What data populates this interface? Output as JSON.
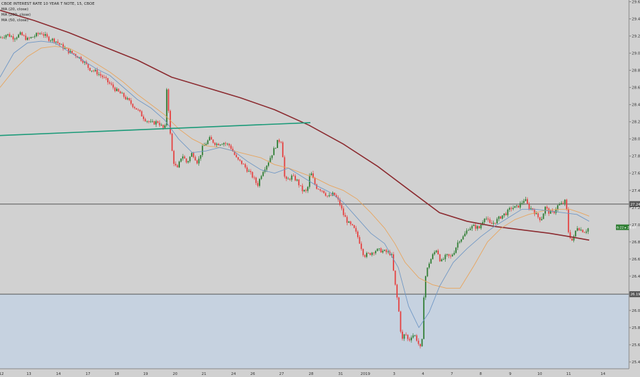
{
  "chart_data": {
    "type": "candlestick",
    "title": "CBOE INTEREST RATE 10 YEAR T NOTE, 15, CBOE",
    "legend_items": [
      "MA (20, close)",
      "MA (200, close)",
      "MA (50, close)"
    ],
    "x_ticks": [
      "12",
      "13",
      "14",
      "17",
      "18",
      "19",
      "20",
      "21",
      "24",
      "26",
      "27",
      "28",
      "31",
      "2019",
      "3",
      "4",
      "7",
      "8",
      "9",
      "10",
      "11",
      "14"
    ],
    "y_ticks": [
      "25.40",
      "25.60",
      "25.80",
      "26.00",
      "26.20",
      "26.40",
      "26.60",
      "26.80",
      "27.00",
      "27.20",
      "27.40",
      "27.60",
      "27.80",
      "28.00",
      "28.20",
      "28.40",
      "28.60",
      "28.80",
      "29.00",
      "29.20",
      "29.40",
      "29.60"
    ],
    "ylim": [
      25.32,
      29.62
    ],
    "horizontal_levels": [
      {
        "label": "27.24",
        "value": 27.24
      },
      {
        "label": "26.19",
        "value": 26.19
      }
    ],
    "last_price": {
      "label": "6:22 ▸ 26.97",
      "value": 26.97
    },
    "trendline": {
      "x_start": 0,
      "y_start": 28.04,
      "x_end": 452,
      "y_end": 28.19
    },
    "colors": {
      "up": "#2e7d32",
      "down": "#e5403f",
      "ma20": "#6f97c5",
      "ma50": "#e8a45c",
      "ma200": "#8b2a2f",
      "trendline": "#1a9a78",
      "zone": "#c6d2e0",
      "background": "#d1d1d1",
      "price_tag": "#2e7d32"
    },
    "price_path": [
      [
        0,
        29.18
      ],
      [
        10,
        29.22
      ],
      [
        20,
        29.18
      ],
      [
        30,
        29.22
      ],
      [
        40,
        29.16
      ],
      [
        50,
        29.2
      ],
      [
        60,
        29.24
      ],
      [
        70,
        29.17
      ],
      [
        80,
        29.15
      ],
      [
        90,
        29.08
      ],
      [
        100,
        29.02
      ],
      [
        110,
        28.98
      ],
      [
        120,
        28.92
      ],
      [
        130,
        28.82
      ],
      [
        140,
        28.78
      ],
      [
        150,
        28.72
      ],
      [
        160,
        28.64
      ],
      [
        170,
        28.56
      ],
      [
        180,
        28.5
      ],
      [
        190,
        28.42
      ],
      [
        200,
        28.34
      ],
      [
        210,
        28.24
      ],
      [
        220,
        28.18
      ],
      [
        230,
        28.2
      ],
      [
        240,
        28.1
      ],
      [
        243,
        28.62
      ],
      [
        248,
        28.05
      ],
      [
        252,
        27.75
      ],
      [
        258,
        27.64
      ],
      [
        265,
        27.82
      ],
      [
        272,
        27.72
      ],
      [
        280,
        27.84
      ],
      [
        288,
        27.72
      ],
      [
        295,
        27.9
      ],
      [
        305,
        28.0
      ],
      [
        315,
        27.94
      ],
      [
        325,
        27.96
      ],
      [
        335,
        27.92
      ],
      [
        345,
        27.76
      ],
      [
        352,
        27.72
      ],
      [
        360,
        27.64
      ],
      [
        368,
        27.56
      ],
      [
        375,
        27.46
      ],
      [
        382,
        27.62
      ],
      [
        390,
        27.72
      ],
      [
        398,
        27.86
      ],
      [
        405,
        27.98
      ],
      [
        410,
        27.98
      ],
      [
        415,
        27.5
      ],
      [
        425,
        27.56
      ],
      [
        432,
        27.52
      ],
      [
        440,
        27.4
      ],
      [
        447,
        27.38
      ],
      [
        452,
        27.62
      ],
      [
        460,
        27.44
      ],
      [
        470,
        27.4
      ],
      [
        478,
        27.32
      ],
      [
        486,
        27.36
      ],
      [
        494,
        27.26
      ],
      [
        500,
        27.12
      ],
      [
        507,
        27.02
      ],
      [
        515,
        26.96
      ],
      [
        522,
        26.84
      ],
      [
        530,
        26.64
      ],
      [
        538,
        26.66
      ],
      [
        546,
        26.7
      ],
      [
        554,
        26.7
      ],
      [
        562,
        26.68
      ],
      [
        570,
        26.66
      ],
      [
        575,
        26.32
      ],
      [
        580,
        26.05
      ],
      [
        585,
        25.64
      ],
      [
        590,
        25.74
      ],
      [
        595,
        25.64
      ],
      [
        600,
        25.72
      ],
      [
        605,
        25.7
      ],
      [
        610,
        25.6
      ],
      [
        614,
        25.52
      ],
      [
        618,
        26.34
      ],
      [
        624,
        26.54
      ],
      [
        630,
        26.64
      ],
      [
        636,
        26.72
      ],
      [
        642,
        26.56
      ],
      [
        650,
        26.64
      ],
      [
        656,
        26.62
      ],
      [
        662,
        26.7
      ],
      [
        668,
        26.82
      ],
      [
        675,
        26.86
      ],
      [
        682,
        26.96
      ],
      [
        690,
        26.98
      ],
      [
        698,
        26.96
      ],
      [
        706,
        27.1
      ],
      [
        714,
        27.0
      ],
      [
        722,
        27.04
      ],
      [
        730,
        27.1
      ],
      [
        738,
        27.14
      ],
      [
        745,
        27.2
      ],
      [
        752,
        27.2
      ],
      [
        758,
        27.24
      ],
      [
        764,
        27.3
      ],
      [
        770,
        27.2
      ],
      [
        776,
        27.18
      ],
      [
        782,
        27.1
      ],
      [
        788,
        27.06
      ],
      [
        794,
        27.2
      ],
      [
        800,
        27.14
      ],
      [
        806,
        27.14
      ],
      [
        812,
        27.22
      ],
      [
        818,
        27.24
      ],
      [
        824,
        27.28
      ],
      [
        828,
        26.9
      ],
      [
        834,
        26.8
      ],
      [
        840,
        26.98
      ],
      [
        846,
        26.94
      ],
      [
        852,
        26.92
      ],
      [
        858,
        26.97
      ]
    ],
    "ma20_path": [
      [
        0,
        28.72
      ],
      [
        20,
        29.0
      ],
      [
        40,
        29.12
      ],
      [
        60,
        29.14
      ],
      [
        80,
        29.12
      ],
      [
        100,
        29.02
      ],
      [
        120,
        28.92
      ],
      [
        140,
        28.82
      ],
      [
        160,
        28.74
      ],
      [
        180,
        28.6
      ],
      [
        200,
        28.46
      ],
      [
        220,
        28.36
      ],
      [
        240,
        28.22
      ],
      [
        260,
        28.0
      ],
      [
        280,
        27.84
      ],
      [
        300,
        27.86
      ],
      [
        320,
        27.9
      ],
      [
        340,
        27.86
      ],
      [
        360,
        27.74
      ],
      [
        380,
        27.64
      ],
      [
        400,
        27.6
      ],
      [
        420,
        27.66
      ],
      [
        440,
        27.56
      ],
      [
        460,
        27.46
      ],
      [
        480,
        27.38
      ],
      [
        500,
        27.26
      ],
      [
        520,
        27.08
      ],
      [
        540,
        26.9
      ],
      [
        560,
        26.78
      ],
      [
        580,
        26.5
      ],
      [
        595,
        26.05
      ],
      [
        610,
        25.8
      ],
      [
        625,
        25.98
      ],
      [
        640,
        26.28
      ],
      [
        660,
        26.56
      ],
      [
        680,
        26.72
      ],
      [
        700,
        26.86
      ],
      [
        720,
        26.98
      ],
      [
        740,
        27.08
      ],
      [
        760,
        27.18
      ],
      [
        780,
        27.18
      ],
      [
        800,
        27.16
      ],
      [
        820,
        27.14
      ],
      [
        840,
        27.12
      ],
      [
        858,
        27.04
      ]
    ],
    "ma50_path": [
      [
        0,
        28.6
      ],
      [
        20,
        28.8
      ],
      [
        40,
        28.96
      ],
      [
        60,
        29.06
      ],
      [
        80,
        29.08
      ],
      [
        100,
        29.06
      ],
      [
        120,
        28.98
      ],
      [
        140,
        28.88
      ],
      [
        160,
        28.78
      ],
      [
        180,
        28.66
      ],
      [
        200,
        28.52
      ],
      [
        220,
        28.4
      ],
      [
        240,
        28.28
      ],
      [
        260,
        28.12
      ],
      [
        280,
        28.0
      ],
      [
        300,
        27.92
      ],
      [
        320,
        27.9
      ],
      [
        340,
        27.86
      ],
      [
        360,
        27.82
      ],
      [
        380,
        27.78
      ],
      [
        400,
        27.7
      ],
      [
        420,
        27.66
      ],
      [
        440,
        27.6
      ],
      [
        460,
        27.54
      ],
      [
        480,
        27.46
      ],
      [
        500,
        27.4
      ],
      [
        520,
        27.3
      ],
      [
        540,
        27.14
      ],
      [
        560,
        26.96
      ],
      [
        575,
        26.78
      ],
      [
        590,
        26.56
      ],
      [
        610,
        26.38
      ],
      [
        630,
        26.3
      ],
      [
        650,
        26.26
      ],
      [
        670,
        26.26
      ],
      [
        690,
        26.52
      ],
      [
        710,
        26.8
      ],
      [
        730,
        26.96
      ],
      [
        750,
        27.06
      ],
      [
        770,
        27.12
      ],
      [
        790,
        27.16
      ],
      [
        810,
        27.18
      ],
      [
        830,
        27.18
      ],
      [
        845,
        27.14
      ],
      [
        858,
        27.1
      ]
    ],
    "ma200_path": [
      [
        0,
        29.5
      ],
      [
        50,
        29.38
      ],
      [
        100,
        29.24
      ],
      [
        150,
        29.08
      ],
      [
        200,
        28.92
      ],
      [
        250,
        28.72
      ],
      [
        300,
        28.6
      ],
      [
        350,
        28.48
      ],
      [
        400,
        28.34
      ],
      [
        450,
        28.16
      ],
      [
        500,
        27.94
      ],
      [
        550,
        27.68
      ],
      [
        600,
        27.38
      ],
      [
        640,
        27.14
      ],
      [
        680,
        27.04
      ],
      [
        720,
        26.98
      ],
      [
        760,
        26.94
      ],
      [
        800,
        26.9
      ],
      [
        830,
        26.86
      ],
      [
        858,
        26.82
      ]
    ]
  }
}
